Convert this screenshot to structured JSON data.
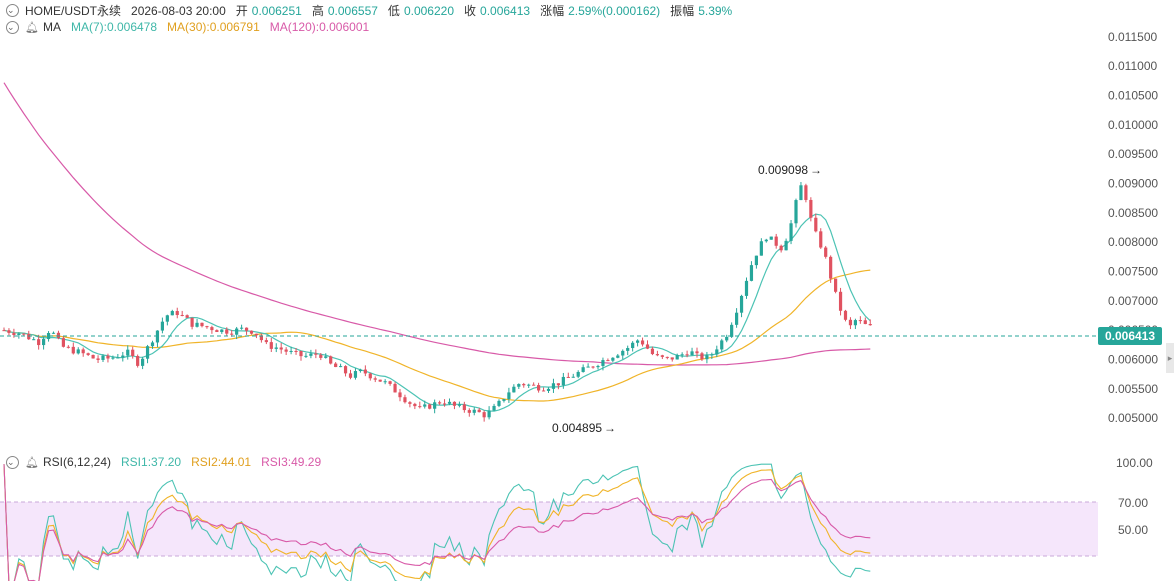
{
  "header": {
    "symbol": "HOME/USDT永续",
    "datetime": "2026-08-03 20:00",
    "open_label": "开",
    "open": "0.006251",
    "high_label": "高",
    "high": "0.006557",
    "low_label": "低",
    "low": "0.006220",
    "close_label": "收",
    "close": "0.006413",
    "change_label": "涨幅",
    "change": "2.59%(0.000162)",
    "amp_label": "振幅",
    "amp": "5.39%"
  },
  "ma_legend": {
    "label": "MA",
    "ma7": "MA(7):0.006478",
    "ma30": "MA(30):0.006791",
    "ma120": "MA(120):0.006001"
  },
  "rsi_legend": {
    "label": "RSI(6,12,24)",
    "rsi1": "RSI1:37.20",
    "rsi2": "RSI2:44.01",
    "rsi3": "RSI3:49.29"
  },
  "icons": {
    "toggle": "chevron-down-icon",
    "alert": "bell-icon"
  },
  "colors": {
    "up": "#26a69a",
    "down": "#e05260",
    "ma7": "#4cc3b4",
    "ma30": "#f0b429",
    "ma120": "#d85aa8",
    "rsi1": "#4cc3b4",
    "rsi2": "#f0b429",
    "rsi3": "#d85aa8",
    "rsi_band": "#f5e6fb",
    "axis_text": "#555555"
  },
  "chart_data": {
    "type": "candlestick",
    "price_axis": {
      "ticks": [
        "0.011500",
        "0.011000",
        "0.010500",
        "0.010000",
        "0.009500",
        "0.009000",
        "0.008500",
        "0.008000",
        "0.007500",
        "0.007000",
        "0.006500",
        "0.006000",
        "0.005500",
        "0.005000"
      ],
      "range": [
        0.0049,
        0.01172
      ]
    },
    "last_price": "0.006413",
    "annotations": {
      "high": "0.009098",
      "low": "0.004895"
    },
    "rsi_axis": {
      "ticks": [
        "100.00",
        "70.00",
        "50.00"
      ],
      "overbought": 70,
      "oversold": 30
    },
    "candle_count": 176,
    "ma120_start": 0.01072
  }
}
